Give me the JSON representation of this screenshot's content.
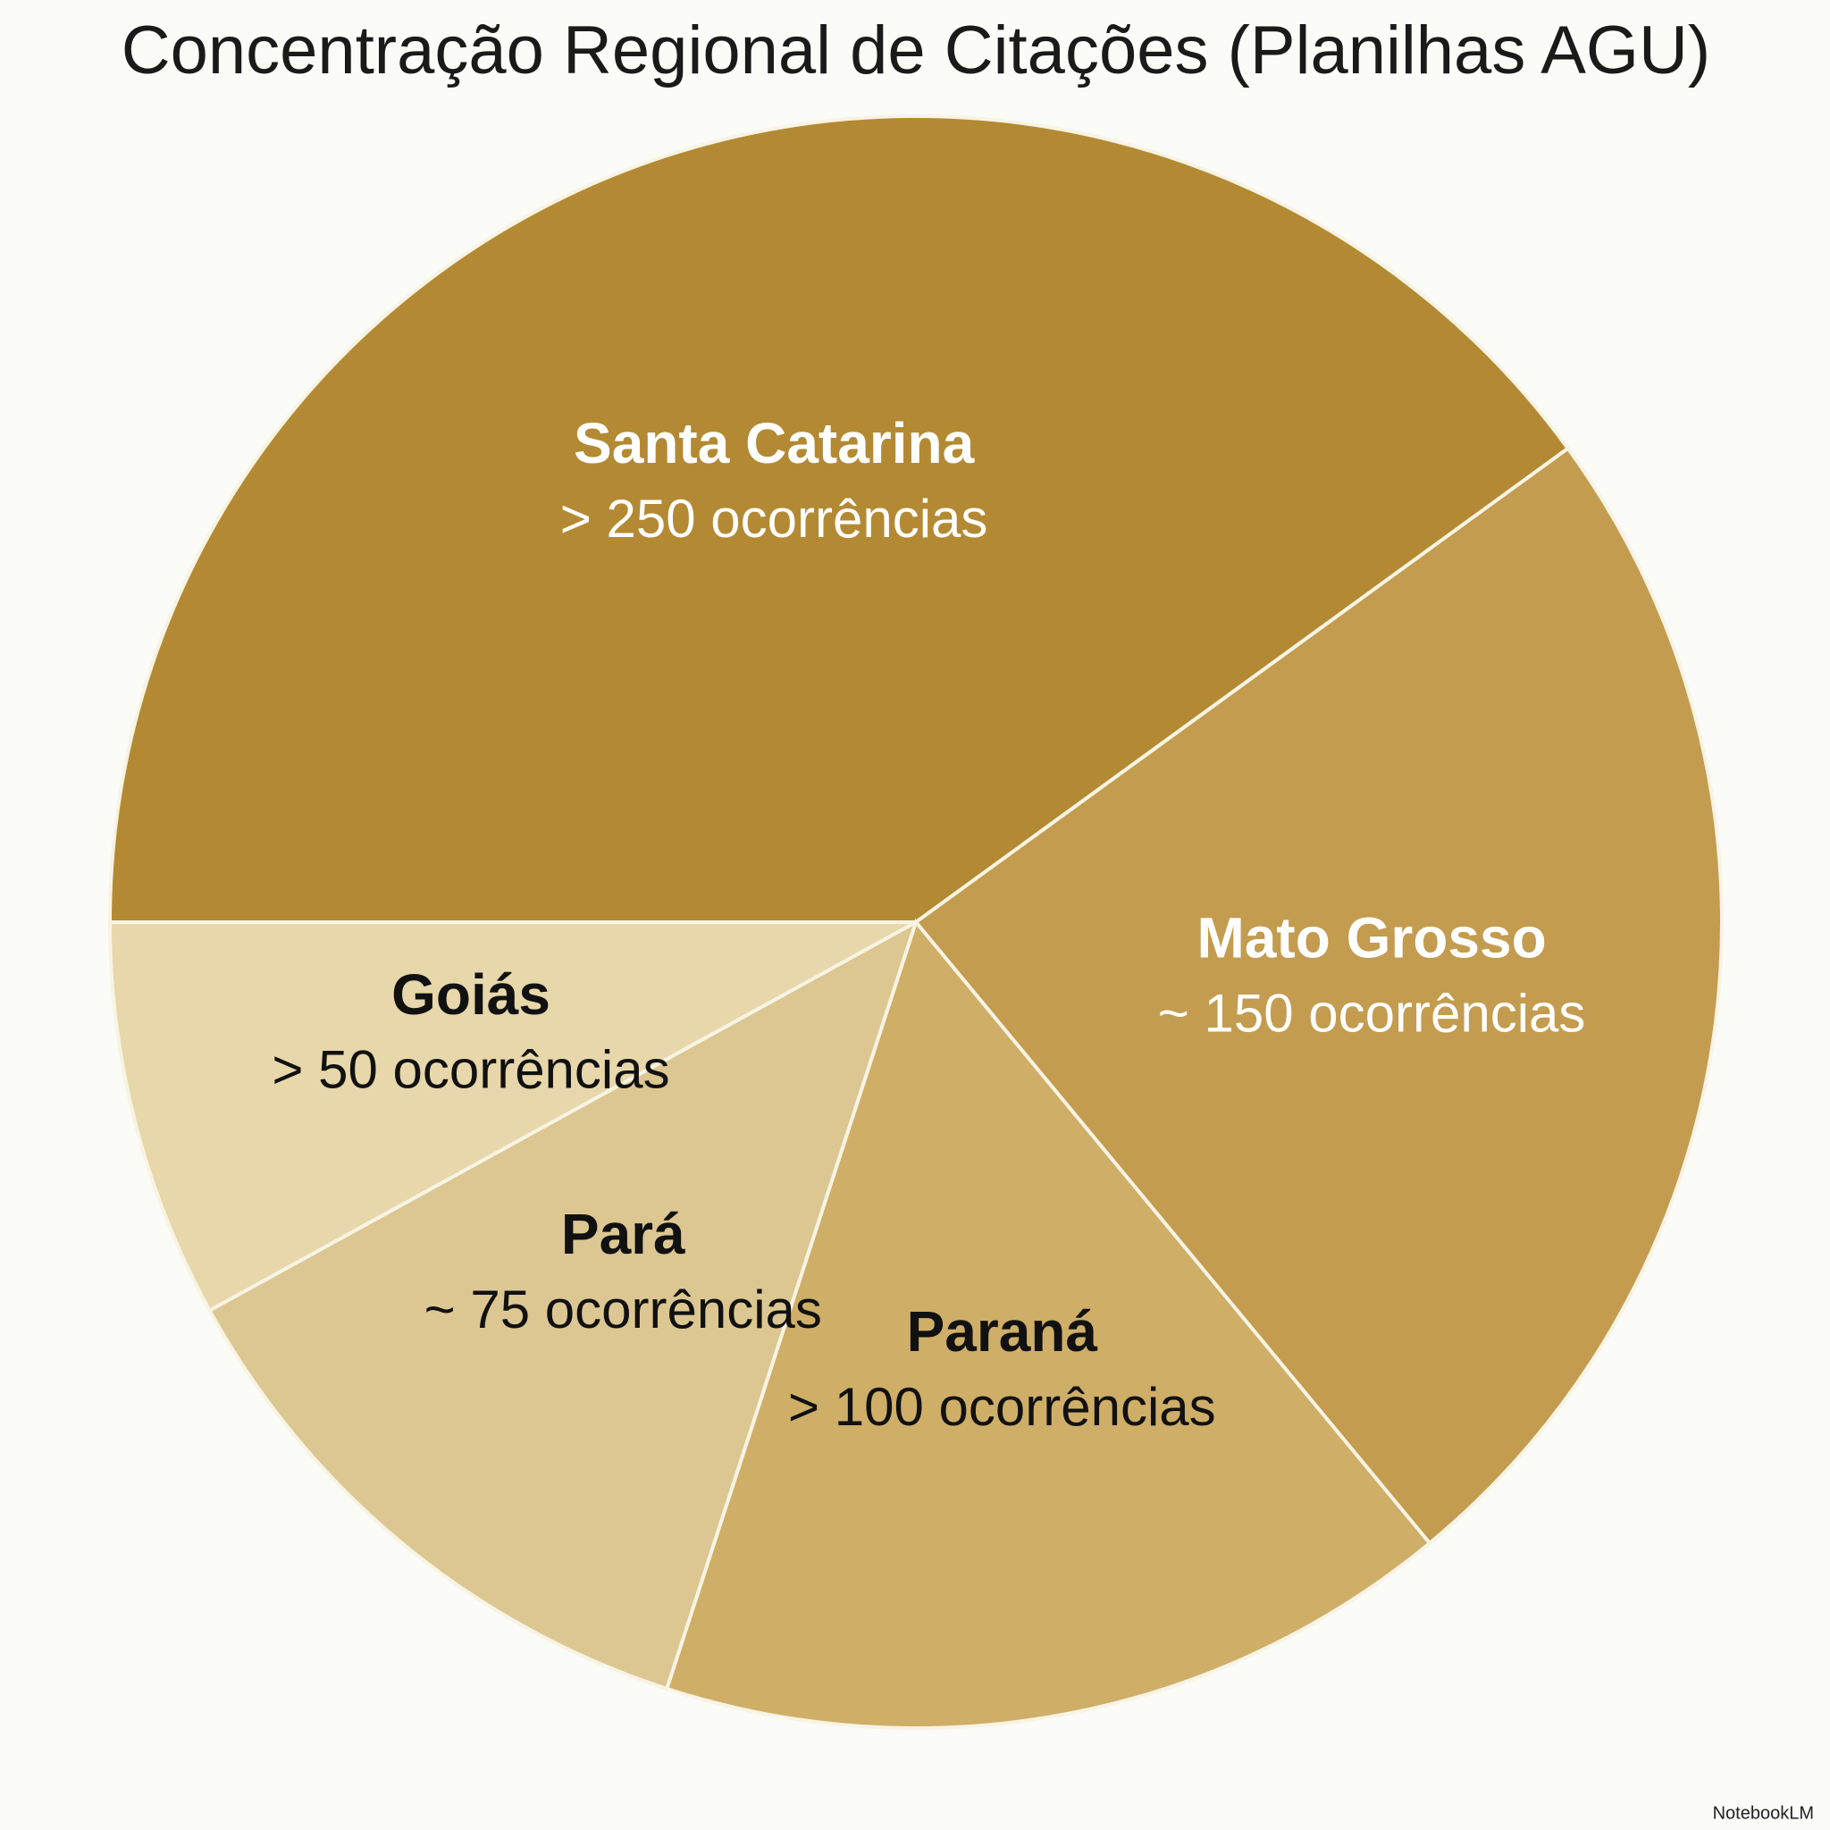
{
  "chart_data": {
    "type": "pie",
    "title": "Concentração Regional de Citações (Planilhas AGU)",
    "categories": [
      "Santa Catarina",
      "Mato Grosso",
      "Paraná",
      "Pará",
      "Goiás"
    ],
    "values": [
      250,
      150,
      100,
      75,
      50
    ],
    "value_labels": [
      "> 250 ocorrências",
      "~ 150 ocorrências",
      "> 100 ocorrências",
      "~ 75 ocorrências",
      "> 50 ocorrências"
    ],
    "colors": [
      "#b38a33",
      "#c39c4f",
      "#cfae68",
      "#dcc792",
      "#e7d7aa"
    ]
  },
  "watermark": "NotebookLM"
}
